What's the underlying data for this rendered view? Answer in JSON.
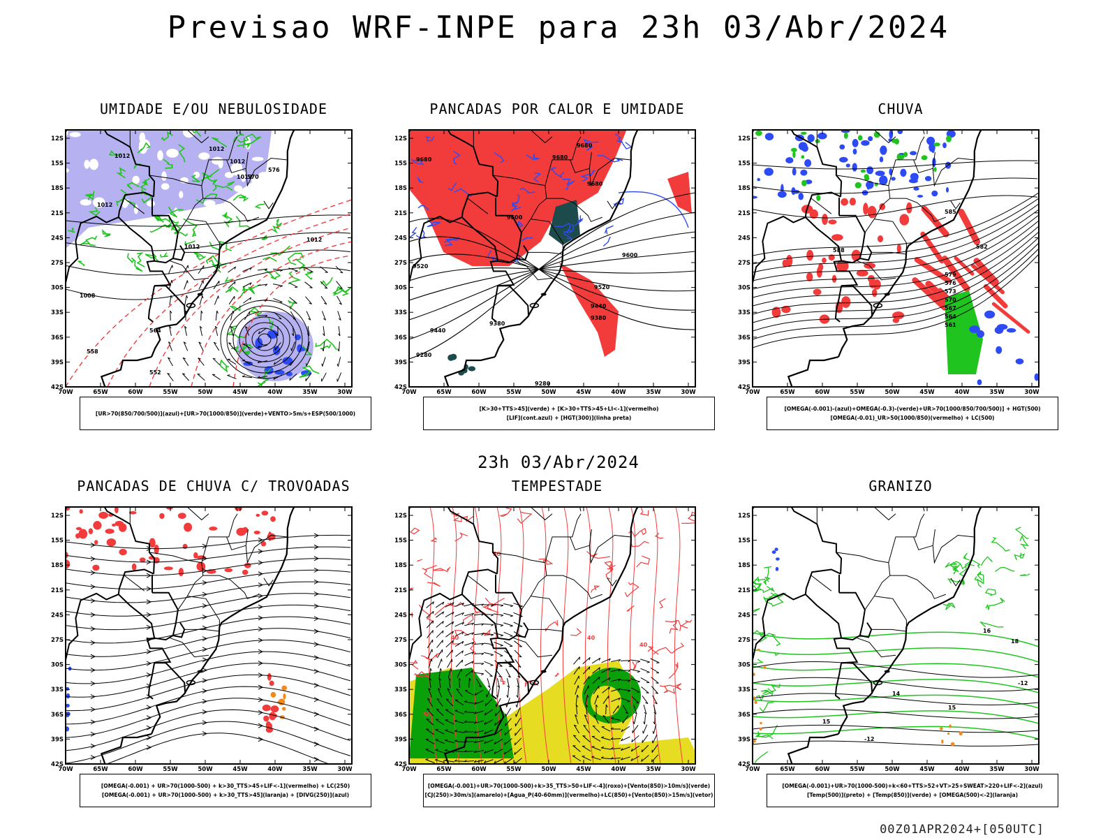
{
  "title": "Previsao WRF-INPE  para 23h 03/Abr/2024",
  "mid_title": "23h 03/Abr/2024",
  "footer": "00Z01APR2024+[050UTC]",
  "axes": {
    "lat": [
      "12S",
      "15S",
      "18S",
      "21S",
      "24S",
      "27S",
      "30S",
      "33S",
      "36S",
      "39S",
      "42S"
    ],
    "lon": [
      "70W",
      "65W",
      "60W",
      "55W",
      "50W",
      "45W",
      "40W",
      "35W",
      "30W"
    ]
  },
  "colors": {
    "red": "#f23c3c",
    "blue": "#2d4bf5",
    "green": "#1fc41f",
    "lavender": "#b6b2f2",
    "teal": "#1d4a4a",
    "yellow": "#e6dc22",
    "orange": "#f08a1e",
    "dgreen": "#0aa00a"
  },
  "panels": [
    {
      "id": "umidade",
      "title": "UMIDADE E/OU NEBULOSIDADE",
      "legend": [
        "[UR>70(850/700/500)](azul)+[UR>70(1000/850)](verde)+VENTO>5m/s+ESP(500/1000)"
      ],
      "labels": [
        "1012",
        "1012",
        "1012",
        "1012",
        "1012",
        "1012",
        "1012",
        "1008",
        "570",
        "576",
        "564",
        "558",
        "552"
      ]
    },
    {
      "id": "pancadas-calor",
      "title": "PANCADAS POR CALOR E UMIDADE",
      "legend": [
        "[K>30+TTS>45](verde) + [K>30+TTS>45+LI<-1](vermelho)",
        "[LIF](cont.azul) + [HGT(300)](linha preta)"
      ],
      "labels": [
        "9680",
        "9680",
        "9680",
        "9680",
        "9600",
        "9520",
        "9520",
        "9440",
        "9440",
        "9380",
        "9380",
        "9280",
        "9280",
        "9600"
      ]
    },
    {
      "id": "chuva",
      "title": "CHUVA",
      "legend": [
        "[OMEGA(-0.001)-(azul)+OMEGA(-0.3)-(verde)+UR>70(1000/850/700/500)] + HGT(500)",
        "[OMEGA(-0.01)_UR>50(1000/850)(vermelho) + LC(500)"
      ],
      "labels": [
        "585",
        "582",
        "579",
        "576",
        "573",
        "570",
        "567",
        "564",
        "561",
        "588"
      ]
    },
    {
      "id": "trovoadas",
      "title": "PANCADAS DE CHUVA C/ TROVOADAS",
      "legend": [
        "[OMEGA(-0.001) + UR>70(1000-500) + k>30_TTS>45+LIF<-1](vermelho) + LC(250)",
        "[OMEGA(-0.001) + UR>70(1000-500) + k>30_TTS>45](laranja) + [DIVG(250)](azul)"
      ],
      "labels": []
    },
    {
      "id": "tempestade",
      "title": "TEMPESTADE",
      "legend": [
        "[OMEGA(-0.001)+UR>70(1000-500)+k>35_TTS>50+LIF<-4](roxo)+[Vento(850)>10m/s](verde)",
        "[CJ(250)>30m/s](amarelo)+[Agua_P(40-60mm)](vermelho)+LC(850)+[Vento(850)>15m/s](vetor)"
      ],
      "labels": [
        "50",
        "50",
        "40",
        "40",
        "40"
      ]
    },
    {
      "id": "granizo",
      "title": "GRANIZO",
      "legend": [
        "[OMEGA(-0.001)+UR>70(1000-500)+k<60+TTS>52+VT>25+SWEAT>220+LIF<-2](azul)",
        "[Temp(500)](preto) + [Temp(850)](verde) + [OMEGA(500)<-2](laranja)"
      ],
      "labels": [
        "-12",
        "-12",
        "15",
        "15",
        "16",
        "14",
        "18"
      ]
    }
  ]
}
